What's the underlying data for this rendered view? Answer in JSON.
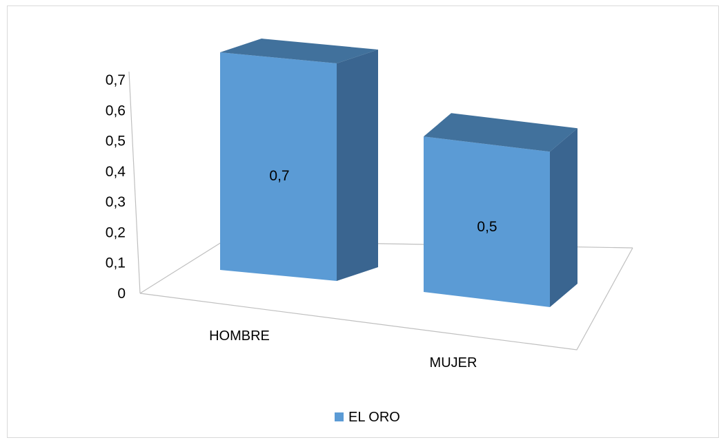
{
  "chart_data": {
    "type": "bar",
    "categories": [
      "HOMBRE",
      "MUJER"
    ],
    "series": [
      {
        "name": "EL ORO",
        "values": [
          0.7,
          0.5
        ],
        "color": "#5b9bd5"
      }
    ],
    "data_labels": [
      "0,7",
      "0,5"
    ],
    "y_tick_labels": [
      "0",
      "0,1",
      "0,2",
      "0,3",
      "0,4",
      "0,5",
      "0,6",
      "0,7"
    ],
    "ylim": [
      0,
      0.7
    ],
    "style": "3d",
    "legend_position": "bottom",
    "grid": false
  },
  "legend": {
    "label": "EL ORO",
    "color": "#5b9bd5"
  }
}
